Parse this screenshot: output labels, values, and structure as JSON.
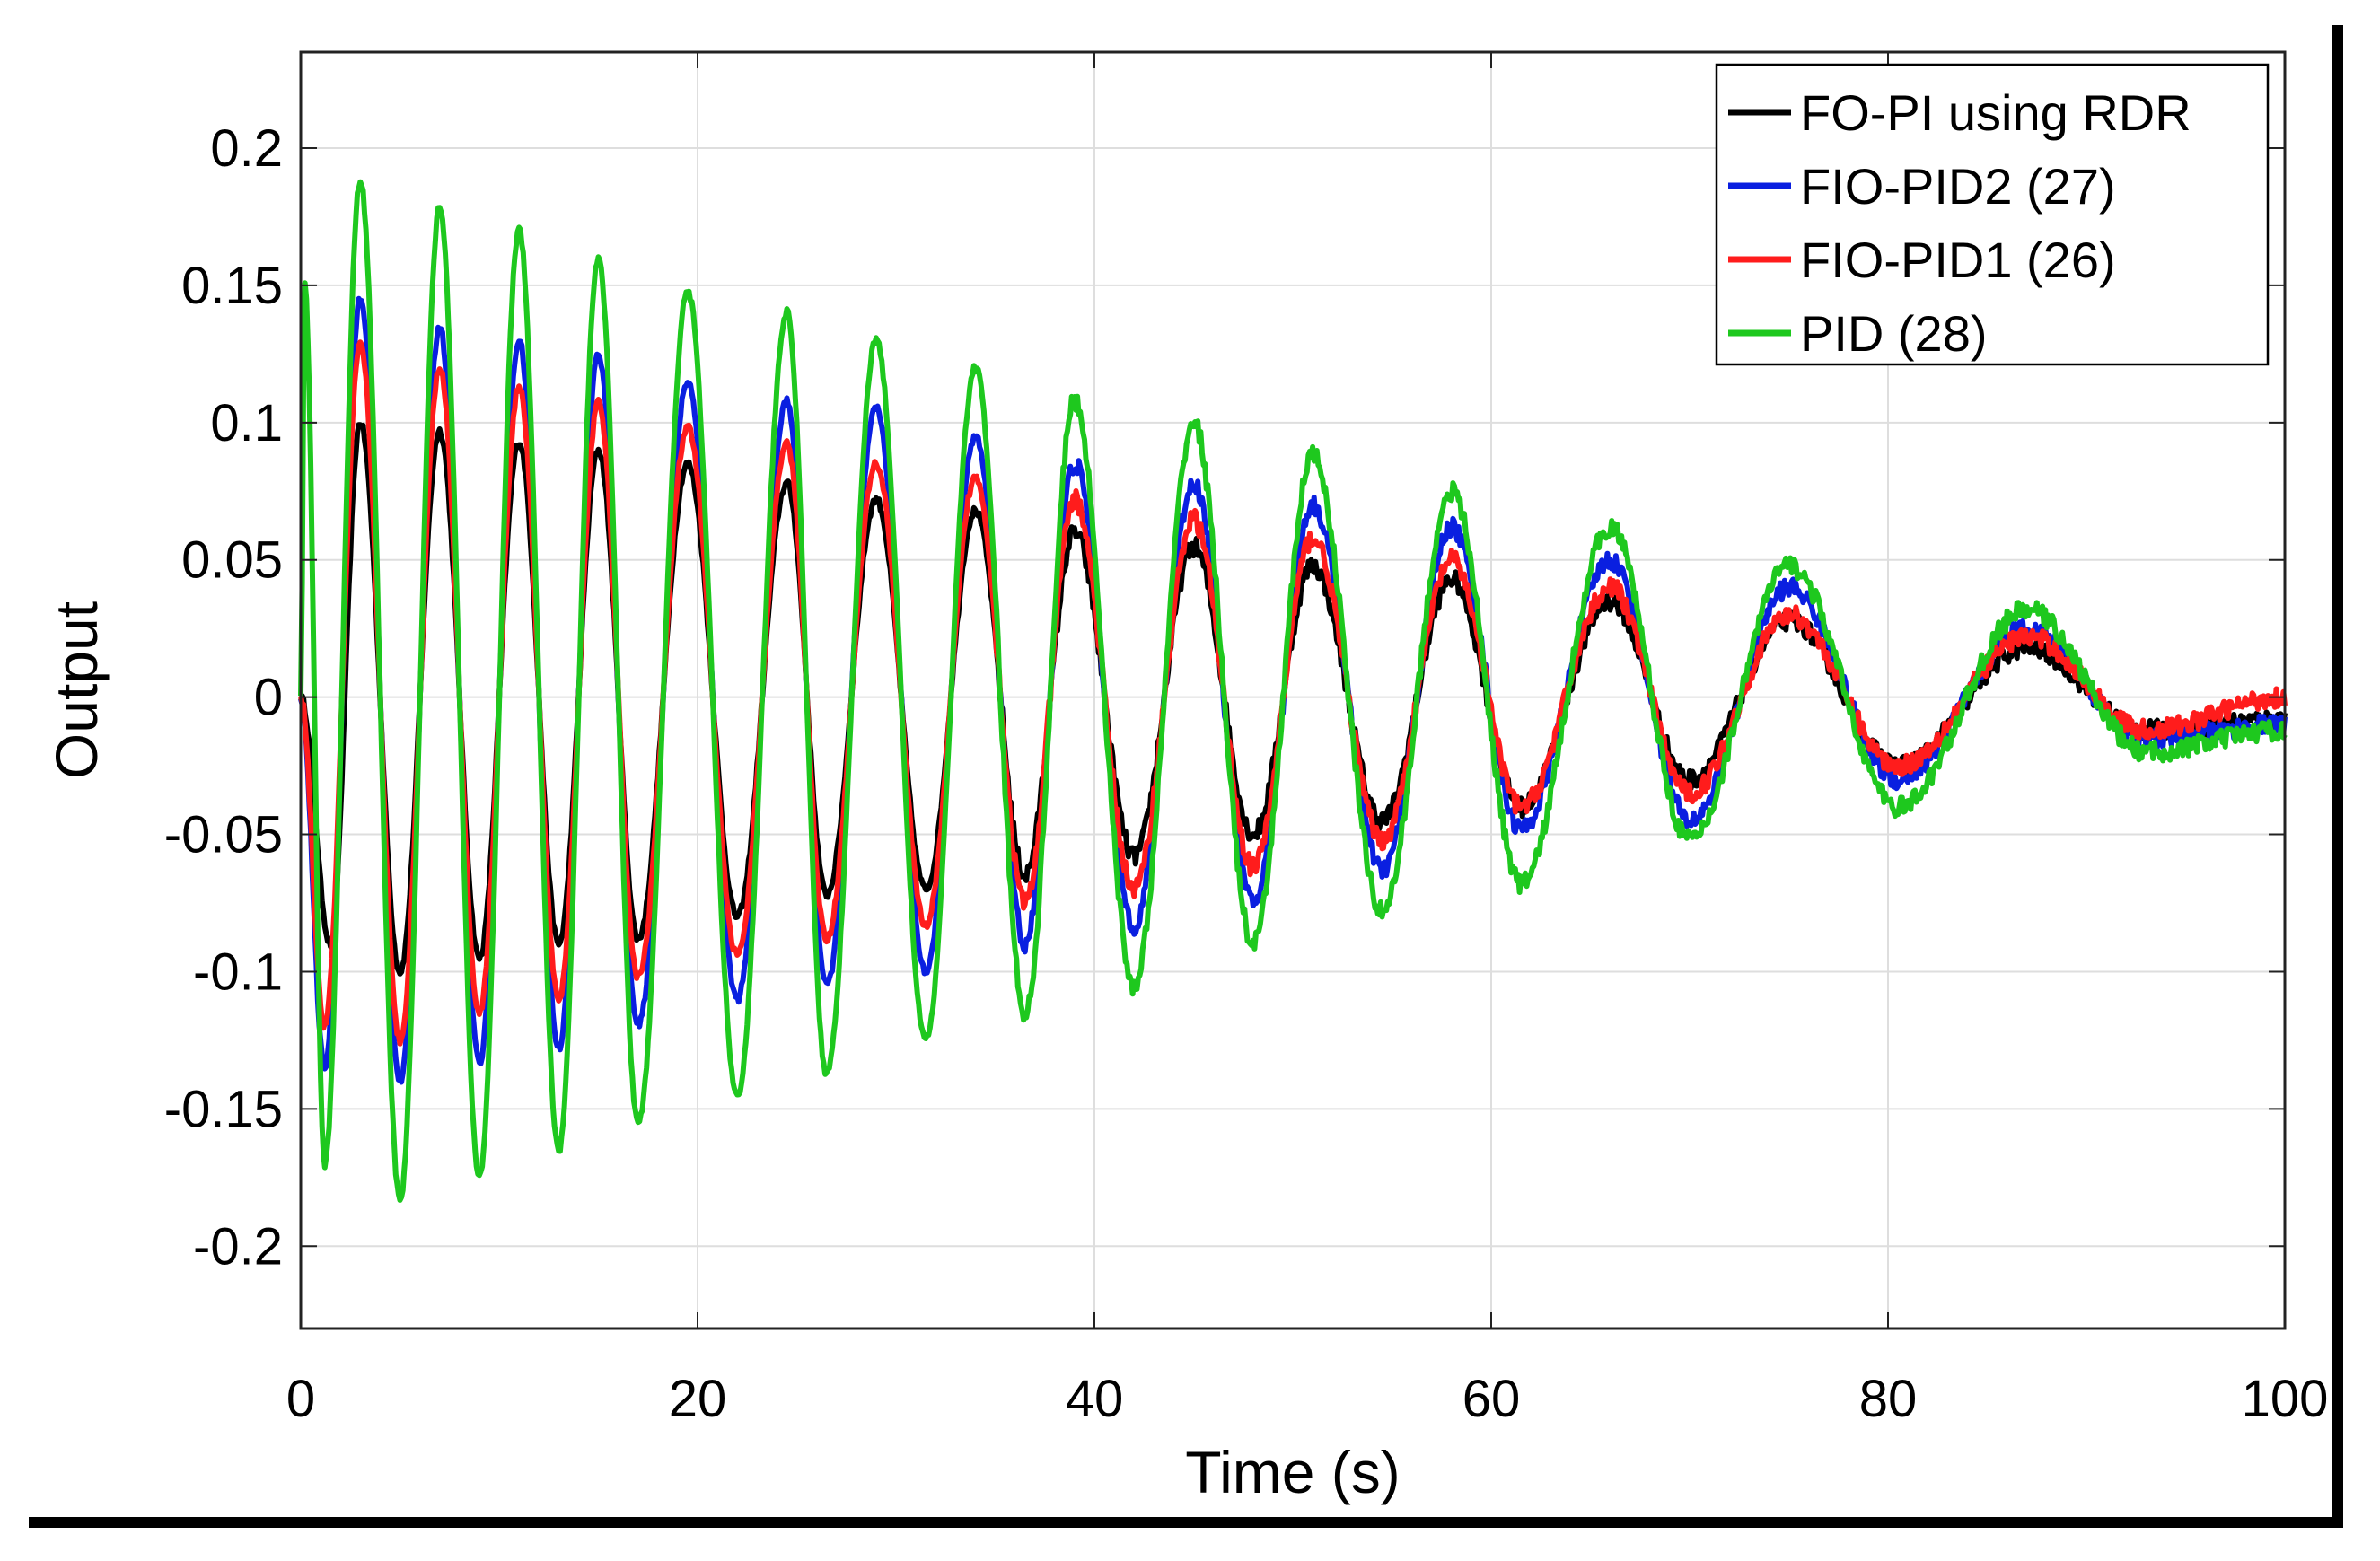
{
  "chart_data": {
    "type": "line",
    "title": "",
    "xlabel": "Time (s)",
    "ylabel": "Output",
    "xlim": [
      0,
      100
    ],
    "ylim": [
      -0.23,
      0.235
    ],
    "grid": true,
    "legend_position": "top-right",
    "x_ticks": [
      0,
      20,
      40,
      60,
      80,
      100
    ],
    "x_tick_labels": [
      "0",
      "20",
      "40",
      "60",
      "80",
      "100"
    ],
    "y_ticks": [
      0.2,
      0.15,
      0.1,
      0.05,
      0,
      -0.05,
      -0.1,
      -0.15,
      -0.2
    ],
    "y_tick_labels": [
      "0.2",
      "0.15",
      "0.1",
      "0.05",
      "0",
      "-0.05",
      "-0.1",
      "-0.15",
      "-0.2"
    ],
    "series": [
      {
        "name": "FO-PI using RDR",
        "color": "#000000",
        "x": [
          0,
          1.5,
          3.0,
          5.0,
          7.0,
          9.0,
          11.0,
          13.0,
          15.0,
          17.0,
          19.5,
          22.0,
          24.5,
          26.5,
          29.0,
          31.5,
          34.0,
          36.5,
          39.0,
          42.0,
          45.0,
          48.0,
          51.0,
          54.5,
          58.0,
          61.5,
          66.0,
          70.0,
          75.0,
          80.5,
          87.0,
          93.0,
          100.0
        ],
        "values": [
          0.0,
          -0.09,
          0.1,
          -0.1,
          0.097,
          -0.095,
          0.093,
          -0.09,
          0.09,
          -0.088,
          0.085,
          -0.08,
          0.078,
          -0.072,
          0.072,
          -0.07,
          0.068,
          -0.065,
          0.06,
          -0.058,
          0.055,
          -0.05,
          0.048,
          -0.045,
          0.043,
          -0.04,
          0.035,
          -0.03,
          0.028,
          -0.025,
          0.018,
          -0.012,
          -0.008
        ]
      },
      {
        "name": "FIO-PID2 (27)",
        "color": "#0a1fe0",
        "x": [
          0,
          1.2,
          3.0,
          5.0,
          7.0,
          9.0,
          11.0,
          13.0,
          15.0,
          17.0,
          19.5,
          22.0,
          24.5,
          26.5,
          29.0,
          31.5,
          34.0,
          36.5,
          39.0,
          42.0,
          45.0,
          48.0,
          51.0,
          54.5,
          58.0,
          61.5,
          66.0,
          70.0,
          75.0,
          80.5,
          87.0,
          93.0,
          100.0
        ],
        "values": [
          0.0,
          -0.135,
          0.145,
          -0.14,
          0.135,
          -0.133,
          0.13,
          -0.128,
          0.125,
          -0.12,
          0.115,
          -0.11,
          0.108,
          -0.105,
          0.105,
          -0.1,
          0.095,
          -0.09,
          0.085,
          -0.083,
          0.078,
          -0.075,
          0.07,
          -0.063,
          0.062,
          -0.048,
          0.05,
          -0.045,
          0.04,
          -0.03,
          0.025,
          -0.015,
          -0.01
        ]
      },
      {
        "name": "FIO-PID1 (26)",
        "color": "#ff1c1c",
        "x": [
          0,
          1.2,
          3.0,
          5.0,
          7.0,
          9.0,
          11.0,
          13.0,
          15.0,
          17.0,
          19.5,
          22.0,
          24.5,
          26.5,
          29.0,
          31.5,
          34.0,
          36.5,
          39.0,
          42.0,
          45.0,
          48.0,
          51.0,
          54.5,
          58.0,
          61.5,
          66.0,
          70.0,
          75.0,
          80.5,
          87.0,
          93.0,
          100.0
        ],
        "values": [
          0.0,
          -0.12,
          0.128,
          -0.125,
          0.12,
          -0.115,
          0.113,
          -0.11,
          0.107,
          -0.102,
          0.098,
          -0.094,
          0.092,
          -0.088,
          0.085,
          -0.083,
          0.08,
          -0.075,
          0.072,
          -0.07,
          0.065,
          -0.062,
          0.058,
          -0.052,
          0.05,
          -0.04,
          0.04,
          -0.035,
          0.03,
          -0.025,
          0.022,
          -0.012,
          0.0
        ]
      },
      {
        "name": "PID (28)",
        "color": "#1ec81e",
        "x": [
          0,
          0.2,
          1.2,
          3.0,
          5.0,
          7.0,
          9.0,
          11.0,
          13.0,
          15.0,
          17.0,
          19.5,
          22.0,
          24.5,
          26.5,
          29.0,
          31.5,
          34.0,
          36.5,
          39.0,
          42.0,
          45.0,
          48.0,
          51.0,
          54.5,
          58.0,
          61.5,
          66.0,
          70.0,
          75.0,
          80.5,
          87.0,
          93.0,
          100.0
        ],
        "values": [
          0.0,
          0.15,
          -0.17,
          0.188,
          -0.183,
          0.178,
          -0.175,
          0.17,
          -0.165,
          0.16,
          -0.155,
          0.148,
          -0.145,
          0.14,
          -0.137,
          0.13,
          -0.125,
          0.12,
          -0.115,
          0.108,
          -0.105,
          0.1,
          -0.09,
          0.088,
          -0.078,
          0.075,
          -0.068,
          0.062,
          -0.052,
          0.048,
          -0.04,
          0.032,
          -0.02,
          -0.012
        ]
      }
    ]
  }
}
